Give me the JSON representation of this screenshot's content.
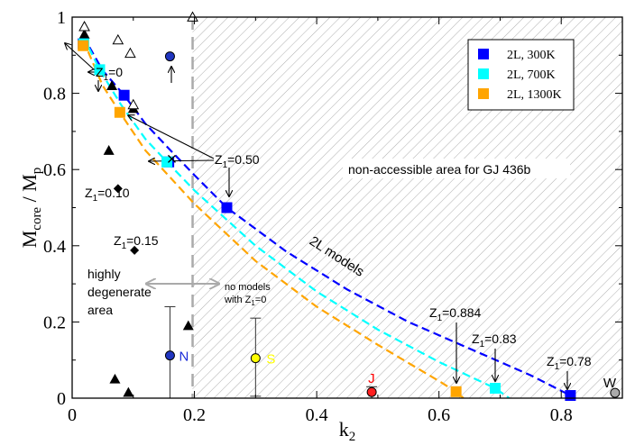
{
  "chart_data": {
    "type": "scatter",
    "xlabel": {
      "main": "k",
      "sub": "2"
    },
    "ylabel": {
      "main": "M",
      "sub1": "core",
      "mid": " / M",
      "sub2": "p"
    },
    "xlim": [
      0,
      0.9
    ],
    "ylim": [
      0,
      1
    ],
    "xticks": [
      {
        "v": 0,
        "label": "0"
      },
      {
        "v": 0.2,
        "label": "0.2"
      },
      {
        "v": 0.4,
        "label": "0.4"
      },
      {
        "v": 0.6,
        "label": "0.6"
      },
      {
        "v": 0.8,
        "label": "0.8"
      }
    ],
    "yticks": [
      {
        "v": 0,
        "label": "0"
      },
      {
        "v": 0.2,
        "label": "0.2"
      },
      {
        "v": 0.4,
        "label": "0.4"
      },
      {
        "v": 0.6,
        "label": "0.6"
      },
      {
        "v": 0.8,
        "label": "0.8"
      },
      {
        "v": 1,
        "label": "1"
      }
    ],
    "hatched_region": {
      "x_from": 0.197,
      "label": "non-accessible area for GJ 436b"
    },
    "vertical_dashed_line_x": 0.197,
    "series": [
      {
        "name": "2L, 300K",
        "color": "#0000ff",
        "points": [
          [
            0.018,
            0.93
          ],
          [
            0.085,
            0.795
          ],
          [
            0.158,
            0.62
          ],
          [
            0.253,
            0.5
          ],
          [
            0.815,
            0.007
          ]
        ],
        "dashed_curve": [
          [
            0.018,
            0.95
          ],
          [
            0.05,
            0.86
          ],
          [
            0.085,
            0.795
          ],
          [
            0.12,
            0.72
          ],
          [
            0.158,
            0.655
          ],
          [
            0.2,
            0.585
          ],
          [
            0.253,
            0.5
          ],
          [
            0.35,
            0.385
          ],
          [
            0.45,
            0.285
          ],
          [
            0.55,
            0.2
          ],
          [
            0.65,
            0.13
          ],
          [
            0.75,
            0.06
          ],
          [
            0.815,
            0.007
          ]
        ]
      },
      {
        "name": "2L, 700K",
        "color": "#00ffff",
        "points": [
          [
            0.019,
            0.93
          ],
          [
            0.045,
            0.862
          ],
          [
            0.155,
            0.62
          ],
          [
            0.692,
            0.026
          ]
        ],
        "dashed_curve": [
          [
            0.018,
            0.95
          ],
          [
            0.045,
            0.862
          ],
          [
            0.08,
            0.77
          ],
          [
            0.12,
            0.68
          ],
          [
            0.155,
            0.62
          ],
          [
            0.2,
            0.545
          ],
          [
            0.3,
            0.4
          ],
          [
            0.4,
            0.28
          ],
          [
            0.5,
            0.18
          ],
          [
            0.6,
            0.095
          ],
          [
            0.692,
            0.026
          ],
          [
            0.715,
            0
          ]
        ]
      },
      {
        "name": "2L, 1300K",
        "color": "#ffa500",
        "points": [
          [
            0.018,
            0.925
          ],
          [
            0.078,
            0.75
          ],
          [
            0.628,
            0.017
          ]
        ],
        "dashed_curve": [
          [
            0.018,
            0.94
          ],
          [
            0.05,
            0.82
          ],
          [
            0.078,
            0.75
          ],
          [
            0.12,
            0.65
          ],
          [
            0.2,
            0.51
          ],
          [
            0.3,
            0.36
          ],
          [
            0.4,
            0.24
          ],
          [
            0.5,
            0.14
          ],
          [
            0.6,
            0.045
          ],
          [
            0.628,
            0.017
          ],
          [
            0.64,
            0
          ]
        ]
      }
    ],
    "black_triangles": [
      [
        0.02,
        0.955
      ],
      [
        0.065,
        0.82
      ],
      [
        0.1,
        0.76
      ],
      [
        0.06,
        0.65
      ],
      [
        0.19,
        0.19
      ],
      [
        0.07,
        0.05
      ],
      [
        0.092,
        0.015
      ]
    ],
    "open_triangles": [
      [
        0.02,
        0.975
      ],
      [
        0.075,
        0.94
      ],
      [
        0.095,
        0.905
      ],
      [
        0.1,
        0.77
      ],
      [
        0.197,
        1.0
      ]
    ],
    "diamonds": [
      {
        "x": 0.075,
        "y": 0.55,
        "label": "Z",
        "sub": "1",
        "rest": "=0.10"
      },
      {
        "x": 0.102,
        "y": 0.388,
        "label": "Z",
        "sub": "1",
        "rest": "=0.15"
      }
    ],
    "planets": [
      {
        "name": "N",
        "x": 0.16,
        "y": 0.112,
        "err": [
          0.0,
          0.24
        ],
        "color": "#2035c0",
        "label_color": "#1a2bd8"
      },
      {
        "name": "S",
        "x": 0.3,
        "y": 0.105,
        "err": [
          0.005,
          0.21
        ],
        "color": "#ffff00",
        "label_color": "#ffff00"
      },
      {
        "name": "J",
        "x": 0.49,
        "y": 0.016,
        "err": [
          0.0,
          0.03
        ],
        "color": "#ff2020",
        "label_color": "#ff0000"
      },
      {
        "name": "W",
        "x": 0.888,
        "y": 0.014,
        "err": [
          0.0,
          0.0
        ],
        "color": "#aaaaaa",
        "label_color": "#000000"
      }
    ],
    "blue_circle": {
      "x": 0.16,
      "y": 0.897
    },
    "annotations": {
      "z0": {
        "label": "Z",
        "sub": "1",
        "rest": "=0"
      },
      "z050": {
        "label": "Z",
        "sub": "1",
        "rest": "=0.50"
      },
      "z0884": {
        "label": "Z",
        "sub": "1",
        "rest": "=0.884"
      },
      "z083": {
        "label": "Z",
        "sub": "1",
        "rest": "=0.83"
      },
      "z078": {
        "label": "Z",
        "sub": "1",
        "rest": "=0.78"
      },
      "models_label": "2L models",
      "degenerate": [
        "highly",
        "degenerate",
        "area"
      ],
      "no_models": {
        "l1": "no models",
        "l2_pre": "with Z",
        "l2_sub": "1",
        "l2_post": "=0"
      }
    },
    "legend": {
      "position": "top-right"
    }
  }
}
